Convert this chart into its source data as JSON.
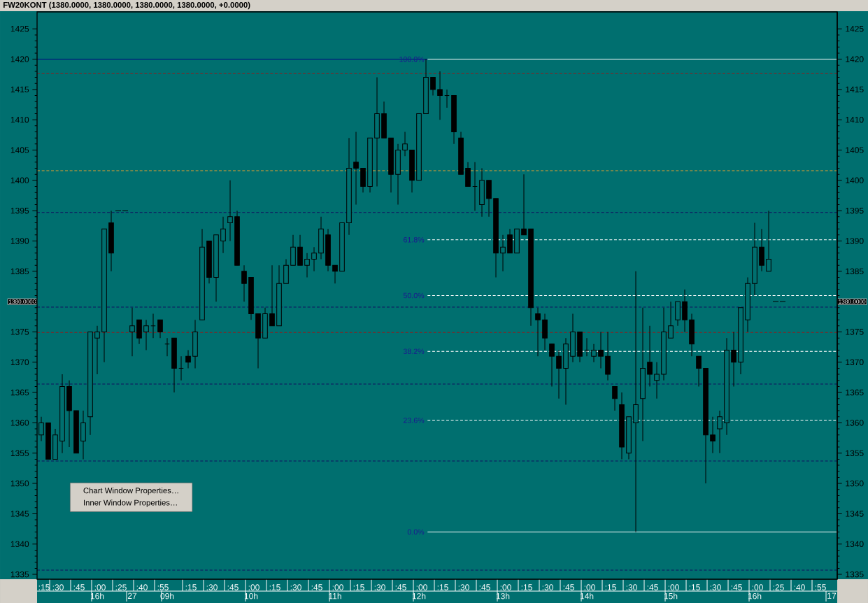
{
  "chart_data": {
    "type": "candlestick",
    "title": "FW20KONT (1380.0000, 1380.0000, 1380.0000, 1380.0000, +0.0000)",
    "categories": [
      ":15",
      null,
      ":30",
      null,
      null,
      ":45",
      null,
      null,
      ":00",
      null,
      null,
      ":25",
      null,
      null,
      ":40",
      null,
      null,
      ":55",
      null,
      null,
      null,
      ":15",
      null,
      null,
      ":30",
      null,
      null,
      ":45",
      null,
      null,
      ":00",
      null,
      null,
      ":15",
      null,
      null,
      ":30",
      null,
      null,
      ":45",
      null,
      null,
      ":00",
      null,
      null,
      ":15",
      null,
      null,
      ":30",
      null,
      null,
      ":45",
      null,
      null,
      ":00",
      null,
      null,
      ":15",
      null,
      null,
      ":30",
      null,
      null,
      ":45",
      null,
      null,
      ":00",
      null,
      null,
      ":15",
      null,
      null,
      ":30",
      null,
      null,
      ":45",
      null,
      null,
      ":00",
      null,
      null,
      ":15",
      null,
      null,
      ":30",
      null,
      null,
      ":45",
      null,
      null,
      ":00",
      null,
      null,
      ":15",
      null,
      null,
      ":30",
      null,
      null,
      ":45",
      null,
      null,
      ":00",
      null,
      null,
      ":25",
      null,
      null,
      ":40",
      null,
      null,
      ":55",
      null,
      null
    ],
    "ohlc": [
      [
        1358,
        1361,
        1357,
        1360
      ],
      [
        1360,
        1360,
        1354,
        1354
      ],
      [
        1354,
        1359,
        1354,
        1358
      ],
      [
        1357,
        1368,
        1355,
        1366
      ],
      [
        1366,
        1367,
        1356,
        1362
      ],
      [
        1362,
        1362,
        1355,
        1355
      ],
      [
        1357,
        1362,
        1354,
        1360
      ],
      [
        1361,
        1375,
        1358,
        1375
      ],
      [
        1374,
        1376,
        1368,
        1375
      ],
      [
        1375,
        1392,
        1370,
        1392
      ],
      [
        1393,
        1395,
        1385,
        1388
      ],
      [
        1395,
        1395,
        1395,
        1395
      ],
      [
        1395,
        1395,
        1395,
        1395
      ],
      [
        1375,
        1379,
        1371,
        1376
      ],
      [
        1377,
        1377,
        1373,
        1374
      ],
      [
        1375,
        1377,
        1372,
        1376
      ],
      [
        1376,
        1378,
        1374,
        1376
      ],
      [
        1377,
        1377,
        1374,
        1375
      ],
      [
        1373,
        1374,
        1371,
        1373
      ],
      [
        1374,
        1374,
        1365,
        1369
      ],
      [
        1369,
        1371,
        1367,
        1369
      ],
      [
        1371,
        1372,
        1369,
        1370
      ],
      [
        1371,
        1377,
        1369,
        1375
      ],
      [
        1377,
        1392,
        1377,
        1389
      ],
      [
        1390,
        1390,
        1383,
        1384
      ],
      [
        1384,
        1391,
        1380,
        1391
      ],
      [
        1390,
        1394,
        1388,
        1392
      ],
      [
        1393,
        1400,
        1390,
        1394
      ],
      [
        1394,
        1395,
        1386,
        1386
      ],
      [
        1385,
        1386,
        1380,
        1383
      ],
      [
        1384,
        1384,
        1377,
        1378
      ],
      [
        1378,
        1378,
        1369,
        1374
      ],
      [
        1374,
        1379,
        1374,
        1378
      ],
      [
        1378,
        1386,
        1376,
        1376
      ],
      [
        1376,
        1386,
        1376,
        1383
      ],
      [
        1383,
        1387,
        1383,
        1386
      ],
      [
        1386,
        1391,
        1386,
        1389
      ],
      [
        1389,
        1391,
        1386,
        1386
      ],
      [
        1386,
        1388,
        1384,
        1387
      ],
      [
        1387,
        1389,
        1385,
        1388
      ],
      [
        1388,
        1394,
        1387,
        1392
      ],
      [
        1391,
        1392,
        1385,
        1386
      ],
      [
        1386,
        1386,
        1383,
        1385
      ],
      [
        1385,
        1393,
        1385,
        1393
      ],
      [
        1393,
        1407,
        1391,
        1402
      ],
      [
        1403,
        1408,
        1396,
        1402
      ],
      [
        1402,
        1402,
        1398,
        1399
      ],
      [
        1399,
        1407,
        1398,
        1407
      ],
      [
        1407,
        1417,
        1399,
        1411
      ],
      [
        1411,
        1413,
        1407,
        1407
      ],
      [
        1407,
        1407,
        1398,
        1401
      ],
      [
        1401,
        1406,
        1396,
        1405
      ],
      [
        1405,
        1408,
        1404,
        1406
      ],
      [
        1405,
        1405,
        1398,
        1400
      ],
      [
        1400,
        1411,
        1400,
        1411
      ],
      [
        1411,
        1420,
        1411,
        1417
      ],
      [
        1417,
        1417,
        1414,
        1415
      ],
      [
        1415,
        1418,
        1410,
        1414
      ],
      [
        1414,
        1415,
        1412,
        1414
      ],
      [
        1414,
        1414,
        1406,
        1408
      ],
      [
        1407,
        1408,
        1401,
        1401
      ],
      [
        1402,
        1403,
        1399,
        1399
      ],
      [
        1399,
        1403,
        1395,
        1399
      ],
      [
        1396,
        1402,
        1394,
        1400
      ],
      [
        1400,
        1400,
        1394,
        1397
      ],
      [
        1397,
        1397,
        1384,
        1388
      ],
      [
        1388,
        1391,
        1385,
        1389
      ],
      [
        1391,
        1392,
        1388,
        1388
      ],
      [
        1388,
        1392,
        1388,
        1392
      ],
      [
        1392,
        1401,
        1391,
        1391
      ],
      [
        1392,
        1392,
        1376,
        1379
      ],
      [
        1378,
        1379,
        1371,
        1377
      ],
      [
        1377,
        1378,
        1372,
        1374
      ],
      [
        1373,
        1373,
        1366,
        1371
      ],
      [
        1371,
        1372,
        1364,
        1369
      ],
      [
        1369,
        1374,
        1363,
        1373
      ],
      [
        1371,
        1378,
        1370,
        1375
      ],
      [
        1375,
        1375,
        1370,
        1371
      ],
      [
        1372,
        1374,
        1371,
        1372
      ],
      [
        1371,
        1373,
        1370,
        1372
      ],
      [
        1372,
        1375,
        1369,
        1371
      ],
      [
        1371,
        1375,
        1367,
        1368
      ],
      [
        1366,
        1366,
        1362,
        1364
      ],
      [
        1363,
        1365,
        1354,
        1356
      ],
      [
        1355,
        1361,
        1354,
        1361
      ],
      [
        1360,
        1385,
        1342,
        1363
      ],
      [
        1364,
        1379,
        1357,
        1369
      ],
      [
        1370,
        1376,
        1366,
        1368
      ],
      [
        1367,
        1370,
        1364,
        1368
      ],
      [
        1368,
        1379,
        1367,
        1375
      ],
      [
        1374,
        1380,
        1374,
        1376
      ],
      [
        1377,
        1380,
        1376,
        1380
      ],
      [
        1380,
        1382,
        1375,
        1377
      ],
      [
        1377,
        1378,
        1371,
        1373
      ],
      [
        1371,
        1371,
        1366,
        1369
      ],
      [
        1369,
        1369,
        1350,
        1358
      ],
      [
        1358,
        1361,
        1355,
        1357
      ],
      [
        1359,
        1362,
        1355,
        1361
      ],
      [
        1360,
        1374,
        1358,
        1372
      ],
      [
        1372,
        1375,
        1366,
        1370
      ],
      [
        1370,
        1379,
        1368,
        1379
      ],
      [
        1377,
        1384,
        1375,
        1383
      ],
      [
        1383,
        1393,
        1381,
        1389
      ],
      [
        1389,
        1392,
        1385,
        1386
      ],
      [
        1385,
        1395,
        1385,
        1387
      ],
      [
        1380,
        1380,
        1380,
        1380
      ],
      [
        1380,
        1380,
        1380,
        1380
      ],
      null,
      null,
      null,
      null,
      null,
      null,
      null
    ],
    "ylim": [
      1334.2,
      1427.8
    ],
    "yticks": [
      1335,
      1340,
      1345,
      1350,
      1355,
      1360,
      1365,
      1370,
      1375,
      {
        "value": 1380,
        "label": null
      },
      1385,
      1390,
      1395,
      1400,
      1405,
      1410,
      1415,
      1420,
      1425
    ],
    "y2lim": [
      1334.2,
      1427.8
    ],
    "y2ticks": [
      1335,
      1340,
      1345,
      1350,
      1355,
      1360,
      1365,
      1370,
      1375,
      {
        "value": 1380,
        "label": null
      },
      1385,
      1390,
      1395,
      1400,
      1405,
      1410,
      1415,
      1420,
      1425
    ],
    "ref_lines": [
      {
        "axis": "y",
        "value": 1420,
        "color": "#000080",
        "line_style": "solid"
      },
      {
        "axis": "y",
        "value": 1417.6,
        "color": "#8b2020",
        "line_style": "dashed"
      },
      {
        "axis": "y",
        "value": 1401.6,
        "color": "#e0a030",
        "line_style": "dashed"
      },
      {
        "axis": "y",
        "value": 1394.7,
        "color": "#101060",
        "line_style": "dashed"
      },
      {
        "axis": "y",
        "value": 1379.1,
        "color": "#101060",
        "line_style": "dashed"
      },
      {
        "axis": "y",
        "value": 1374.9,
        "color": "#8b2020",
        "line_style": "dashed"
      },
      {
        "axis": "y",
        "value": 1366.4,
        "color": "#101060",
        "line_style": "dashed"
      },
      {
        "axis": "y",
        "value": 1353.7,
        "color": "#101060",
        "line_style": "dashed"
      },
      {
        "axis": "y",
        "value": 1335.7,
        "color": "#101060",
        "line_style": "dashed"
      },
      {
        "axis": "y",
        "value": 1420,
        "color": "#ffffff",
        "line_style": "solid"
      },
      {
        "axis": "y",
        "value": 1390.2,
        "color": "#ffffff",
        "line_style": "dashed"
      },
      {
        "axis": "y",
        "value": 1381.0,
        "color": "#ffffff",
        "line_style": "dashed"
      },
      {
        "axis": "y",
        "value": 1371.8,
        "color": "#ffffff",
        "line_style": "dashed"
      },
      {
        "axis": "y",
        "value": 1360.4,
        "color": "#ffffff",
        "line_style": "dashed"
      },
      {
        "axis": "y",
        "value": 1342.0,
        "color": "#ffffff",
        "line_style": "solid"
      }
    ],
    "annotations": [
      "1380.0000",
      "100.0%",
      "61.8%",
      "50.0%",
      "38.2%",
      "23.6%",
      "0.0%",
      "16h",
      "27",
      "09h",
      "10h",
      "11h",
      "12h",
      "13h",
      "14h",
      "15h",
      "16h",
      "17",
      "Chart Window Properties…",
      "Inner Window Properties…"
    ]
  }
}
